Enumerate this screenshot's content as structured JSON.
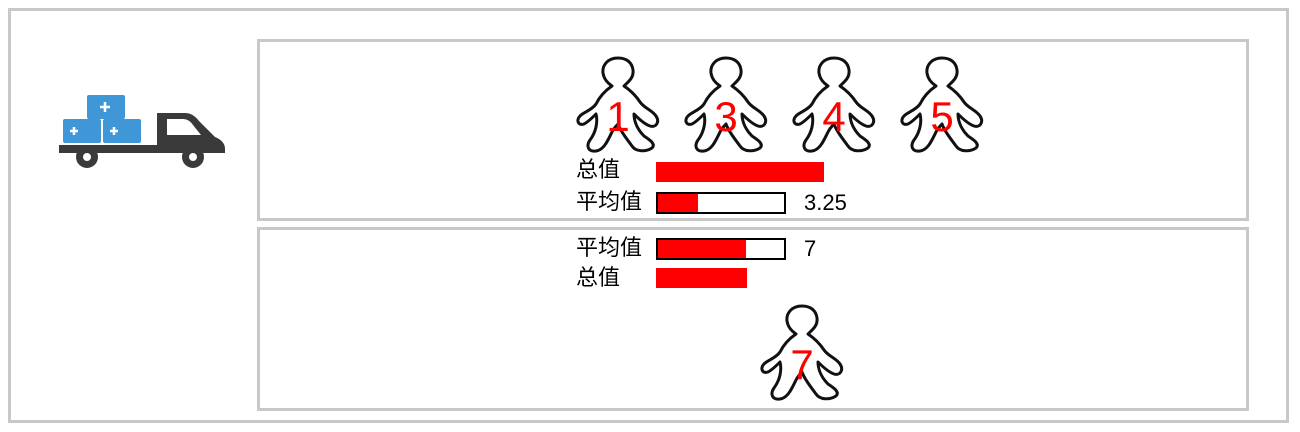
{
  "icons": {
    "delivery": "delivery-truck-icon",
    "person": "person-icon"
  },
  "colors": {
    "accent_red": "#ff0000",
    "box_blue": "#3f97d8",
    "truck_dark": "#3a3a3a",
    "border_gray": "#c8c8c8"
  },
  "top_panel": {
    "people": [
      {
        "label": "1"
      },
      {
        "label": "3"
      },
      {
        "label": "4"
      },
      {
        "label": "5"
      }
    ],
    "total": {
      "label": "总值",
      "fraction": 1.0
    },
    "average": {
      "label": "平均值",
      "value": "3.25",
      "fraction": 0.32
    }
  },
  "bottom_panel": {
    "average": {
      "label": "平均值",
      "value": "7",
      "fraction": 0.7
    },
    "total": {
      "label": "总值",
      "fraction": 0.54
    },
    "people": [
      {
        "label": "7"
      }
    ]
  }
}
